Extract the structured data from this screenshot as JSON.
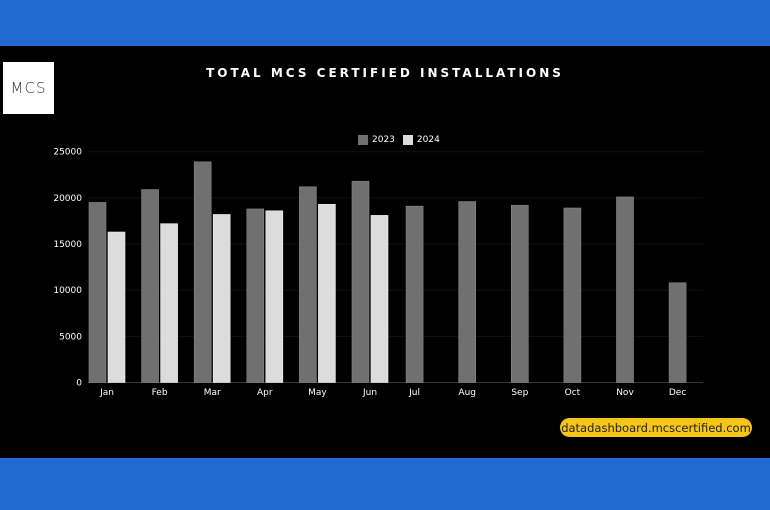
{
  "logo_text": "MCS",
  "source_url": "datadashboard.mcscertified.com",
  "colors": {
    "band": "#1f6bd1",
    "series_2023": "#707070",
    "series_2024": "#dcdcdc",
    "pill": "#f5c518"
  },
  "chart_data": {
    "type": "bar",
    "title": "TOTAL MCS CERTIFIED INSTALLATIONS",
    "xlabel": "",
    "ylabel": "",
    "categories": [
      "Jan",
      "Feb",
      "Mar",
      "Apr",
      "May",
      "Jun",
      "Jul",
      "Aug",
      "Sep",
      "Oct",
      "Nov",
      "Dec"
    ],
    "series": [
      {
        "name": "2023",
        "color": "#707070",
        "values": [
          19500,
          20900,
          23900,
          18800,
          21200,
          21800,
          19100,
          19600,
          19200,
          18900,
          20100,
          10800
        ]
      },
      {
        "name": "2024",
        "color": "#dcdcdc",
        "values": [
          16300,
          17200,
          18200,
          18600,
          19300,
          18100,
          null,
          null,
          null,
          null,
          null,
          null
        ]
      }
    ],
    "ylim": [
      0,
      25000
    ],
    "yticks": [
      0,
      5000,
      10000,
      15000,
      20000,
      25000
    ],
    "legend": "top-center",
    "grid": false
  }
}
